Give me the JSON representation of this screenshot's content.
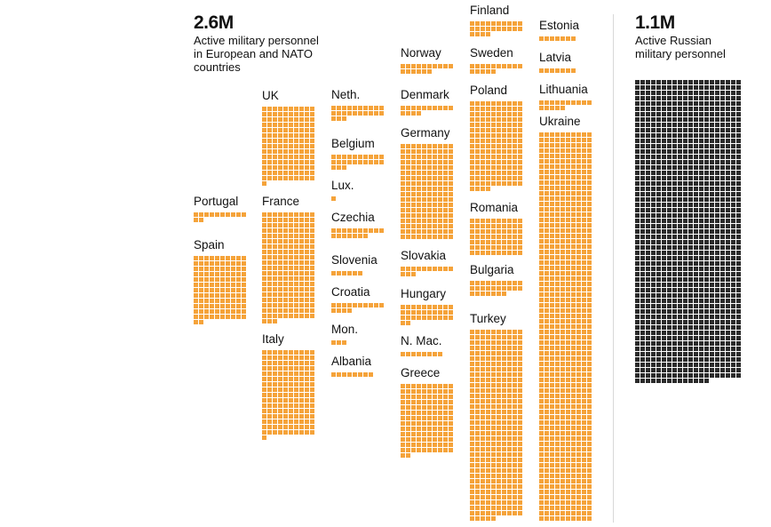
{
  "chart_data": {
    "type": "waffle",
    "unit": "1 square ≈ 1,000 active military personnel",
    "colors": {
      "nato": "#f5a33a",
      "russia": "#2b2b2b"
    },
    "nato_total": {
      "value": "2.6M",
      "label": "Active military personnel in European and NATO countries"
    },
    "russia_total": {
      "value": "1.1M",
      "label": "Active Russian military personnel"
    },
    "countries": [
      {
        "name": "Portugal",
        "value": 12,
        "group": "nato"
      },
      {
        "name": "Spain",
        "value": 122,
        "group": "nato"
      },
      {
        "name": "UK",
        "value": 141,
        "group": "nato"
      },
      {
        "name": "France",
        "value": 203,
        "group": "nato"
      },
      {
        "name": "Italy",
        "value": 161,
        "group": "nato"
      },
      {
        "name": "Neth.",
        "value": 23,
        "group": "nato"
      },
      {
        "name": "Belgium",
        "value": 23,
        "group": "nato"
      },
      {
        "name": "Lux.",
        "value": 1,
        "group": "nato"
      },
      {
        "name": "Czechia",
        "value": 17,
        "group": "nato"
      },
      {
        "name": "Slovenia",
        "value": 6,
        "group": "nato"
      },
      {
        "name": "Croatia",
        "value": 14,
        "group": "nato"
      },
      {
        "name": "Mon.",
        "value": 3,
        "group": "nato"
      },
      {
        "name": "Albania",
        "value": 8,
        "group": "nato"
      },
      {
        "name": "Norway",
        "value": 16,
        "group": "nato"
      },
      {
        "name": "Denmark",
        "value": 14,
        "group": "nato"
      },
      {
        "name": "Germany",
        "value": 180,
        "group": "nato"
      },
      {
        "name": "Slovakia",
        "value": 13,
        "group": "nato"
      },
      {
        "name": "Hungary",
        "value": 32,
        "group": "nato"
      },
      {
        "name": "N. Mac.",
        "value": 8,
        "group": "nato"
      },
      {
        "name": "Greece",
        "value": 132,
        "group": "nato"
      },
      {
        "name": "Finland",
        "value": 24,
        "group": "nato"
      },
      {
        "name": "Sweden",
        "value": 15,
        "group": "nato"
      },
      {
        "name": "Poland",
        "value": 164,
        "group": "nato"
      },
      {
        "name": "Romania",
        "value": 70,
        "group": "nato"
      },
      {
        "name": "Bulgaria",
        "value": 27,
        "group": "nato"
      },
      {
        "name": "Turkey",
        "value": 355,
        "group": "nato"
      },
      {
        "name": "Estonia",
        "value": 7,
        "group": "nato"
      },
      {
        "name": "Latvia",
        "value": 7,
        "group": "nato"
      },
      {
        "name": "Lithuania",
        "value": 15,
        "group": "nato"
      },
      {
        "name": "Ukraine",
        "value": 730,
        "group": "nato"
      },
      {
        "name": "Russia",
        "value": 1134,
        "group": "russia"
      }
    ]
  }
}
